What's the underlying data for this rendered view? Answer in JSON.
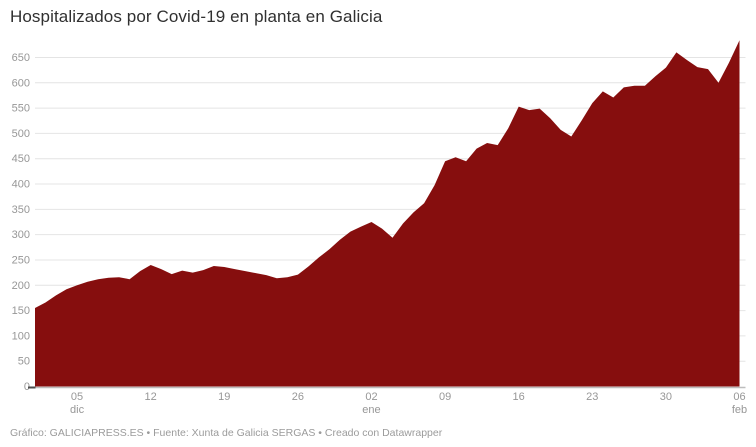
{
  "title": "Hospitalizados por Covid-19 en planta en Galicia",
  "footer": {
    "credit": "Gráfico: GALICIAPRESS.ES • Fuente: Xunta de Galicia SERGAS • Creado con Datawrapper"
  },
  "chart_data": {
    "type": "area",
    "title": "Hospitalizados por Covid-19 en planta en Galicia",
    "xlabel": "",
    "ylabel": "",
    "legend": "none",
    "grid": "horizontal",
    "x_start": "01 dic",
    "x_end": "06 feb",
    "x_interval": "1 día",
    "ylim": [
      0,
      695
    ],
    "y_ticks": [
      0,
      50,
      100,
      150,
      200,
      250,
      300,
      350,
      400,
      450,
      500,
      550,
      600,
      650
    ],
    "x_ticks": [
      {
        "index": 4,
        "label": "05",
        "month": "dic"
      },
      {
        "index": 11,
        "label": "12",
        "month": ""
      },
      {
        "index": 18,
        "label": "19",
        "month": ""
      },
      {
        "index": 25,
        "label": "26",
        "month": ""
      },
      {
        "index": 32,
        "label": "02",
        "month": "ene"
      },
      {
        "index": 39,
        "label": "09",
        "month": ""
      },
      {
        "index": 46,
        "label": "16",
        "month": ""
      },
      {
        "index": 53,
        "label": "23",
        "month": ""
      },
      {
        "index": 60,
        "label": "30",
        "month": ""
      },
      {
        "index": 67,
        "label": "06",
        "month": "feb"
      }
    ],
    "series": [
      {
        "name": "Hospitalizados por Covid-19 en planta",
        "values": [
          155,
          166,
          180,
          192,
          200,
          207,
          212,
          215,
          216,
          212,
          228,
          240,
          232,
          222,
          229,
          225,
          230,
          238,
          236,
          232,
          228,
          224,
          220,
          214,
          216,
          221,
          237,
          255,
          271,
          290,
          306,
          316,
          325,
          312,
          294,
          322,
          344,
          362,
          398,
          445,
          453,
          445,
          470,
          481,
          477,
          510,
          553,
          546,
          549,
          530,
          507,
          494,
          526,
          560,
          583,
          571,
          591,
          594,
          594,
          613,
          630,
          660,
          645,
          631,
          627,
          600,
          640,
          684
        ]
      }
    ],
    "colors": {
      "area_fill": "#860e0e",
      "gridline": "#e4e4e4",
      "baseline": "#bdbdbd",
      "zero_tick": "#4d4d4d",
      "tick_label": "#979797",
      "title_text": "#303030",
      "footer_text": "#9b9b9b"
    }
  }
}
